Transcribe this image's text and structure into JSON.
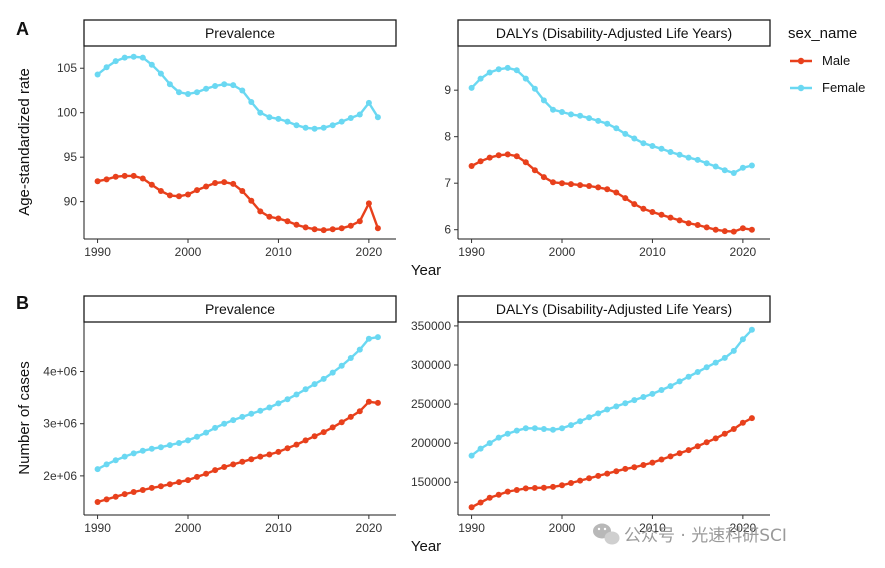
{
  "chart_data": [
    {
      "type": "line",
      "tag": "A",
      "title": "Prevalence",
      "ylabel": "Age-standardized rate",
      "xlim": [
        1988.5,
        2023
      ],
      "ylim": [
        85.8,
        107.5
      ],
      "xticks": [
        1990,
        2000,
        2010,
        2020
      ],
      "xtick_labels": [
        "1990",
        "2000",
        "2010",
        "2020"
      ],
      "yticks": [
        90,
        95,
        100,
        105
      ],
      "ytick_labels": [
        "90",
        "95",
        "100",
        "105"
      ],
      "x": [
        1990,
        1991,
        1992,
        1993,
        1994,
        1995,
        1996,
        1997,
        1998,
        1999,
        2000,
        2001,
        2002,
        2003,
        2004,
        2005,
        2006,
        2007,
        2008,
        2009,
        2010,
        2011,
        2012,
        2013,
        2014,
        2015,
        2016,
        2017,
        2018,
        2019,
        2020,
        2021
      ],
      "series": [
        {
          "name": "Male",
          "color": "#E8401C",
          "values": [
            92.3,
            92.5,
            92.8,
            92.9,
            92.9,
            92.6,
            91.9,
            91.2,
            90.7,
            90.6,
            90.8,
            91.3,
            91.7,
            92.1,
            92.2,
            92.0,
            91.2,
            90.1,
            88.9,
            88.3,
            88.1,
            87.8,
            87.4,
            87.1,
            86.9,
            86.8,
            86.9,
            87.0,
            87.3,
            87.8,
            89.8,
            87.0
          ]
        },
        {
          "name": "Female",
          "color": "#6AD8F2",
          "values": [
            104.3,
            105.1,
            105.8,
            106.2,
            106.3,
            106.2,
            105.4,
            104.4,
            103.2,
            102.3,
            102.1,
            102.3,
            102.7,
            103.0,
            103.2,
            103.1,
            102.5,
            101.2,
            100.0,
            99.5,
            99.3,
            99.0,
            98.6,
            98.3,
            98.2,
            98.3,
            98.6,
            99.0,
            99.4,
            99.8,
            101.1,
            99.5
          ]
        }
      ]
    },
    {
      "type": "line",
      "tag": "",
      "title": "DALYs (Disability-Adjusted Life Years)",
      "ylabel": "",
      "xlim": [
        1988.5,
        2023
      ],
      "ylim": [
        5.8,
        9.95
      ],
      "xticks": [
        1990,
        2000,
        2010,
        2020
      ],
      "xtick_labels": [
        "1990",
        "2000",
        "2010",
        "2020"
      ],
      "yticks": [
        6,
        7,
        8,
        9
      ],
      "ytick_labels": [
        "6",
        "7",
        "8",
        "9"
      ],
      "x": [
        1990,
        1991,
        1992,
        1993,
        1994,
        1995,
        1996,
        1997,
        1998,
        1999,
        2000,
        2001,
        2002,
        2003,
        2004,
        2005,
        2006,
        2007,
        2008,
        2009,
        2010,
        2011,
        2012,
        2013,
        2014,
        2015,
        2016,
        2017,
        2018,
        2019,
        2020,
        2021
      ],
      "series": [
        {
          "name": "Male",
          "color": "#E8401C",
          "values": [
            7.37,
            7.47,
            7.55,
            7.6,
            7.62,
            7.58,
            7.45,
            7.28,
            7.13,
            7.02,
            7.0,
            6.98,
            6.96,
            6.94,
            6.91,
            6.87,
            6.8,
            6.68,
            6.55,
            6.45,
            6.38,
            6.32,
            6.26,
            6.2,
            6.14,
            6.1,
            6.05,
            6.0,
            5.97,
            5.96,
            6.03,
            6.0
          ]
        },
        {
          "name": "Female",
          "color": "#6AD8F2",
          "values": [
            9.05,
            9.25,
            9.38,
            9.45,
            9.48,
            9.43,
            9.25,
            9.03,
            8.78,
            8.58,
            8.53,
            8.48,
            8.45,
            8.4,
            8.34,
            8.28,
            8.18,
            8.06,
            7.96,
            7.86,
            7.8,
            7.74,
            7.67,
            7.61,
            7.55,
            7.5,
            7.43,
            7.36,
            7.28,
            7.22,
            7.33,
            7.38
          ]
        }
      ]
    },
    {
      "type": "line",
      "tag": "B",
      "title": "Prevalence",
      "ylabel": "Number of cases",
      "xlim": [
        1988.5,
        2023
      ],
      "ylim": [
        1250000,
        4950000
      ],
      "xticks": [
        1990,
        2000,
        2010,
        2020
      ],
      "xtick_labels": [
        "1990",
        "2000",
        "2010",
        "2020"
      ],
      "yticks": [
        2000000,
        3000000,
        4000000
      ],
      "ytick_labels": [
        "2e+06",
        "3e+06",
        "4e+06"
      ],
      "x": [
        1990,
        1991,
        1992,
        1993,
        1994,
        1995,
        1996,
        1997,
        1998,
        1999,
        2000,
        2001,
        2002,
        2003,
        2004,
        2005,
        2006,
        2007,
        2008,
        2009,
        2010,
        2011,
        2012,
        2013,
        2014,
        2015,
        2016,
        2017,
        2018,
        2019,
        2020,
        2021
      ],
      "series": [
        {
          "name": "Male",
          "color": "#E8401C",
          "values": [
            1500000,
            1550000,
            1600000,
            1650000,
            1690000,
            1730000,
            1770000,
            1800000,
            1840000,
            1880000,
            1920000,
            1980000,
            2040000,
            2110000,
            2170000,
            2220000,
            2270000,
            2320000,
            2370000,
            2410000,
            2460000,
            2530000,
            2600000,
            2680000,
            2760000,
            2840000,
            2930000,
            3030000,
            3130000,
            3240000,
            3420000,
            3400000
          ]
        },
        {
          "name": "Female",
          "color": "#6AD8F2",
          "values": [
            2130000,
            2220000,
            2300000,
            2370000,
            2430000,
            2480000,
            2520000,
            2550000,
            2590000,
            2630000,
            2680000,
            2750000,
            2830000,
            2920000,
            3000000,
            3070000,
            3130000,
            3190000,
            3250000,
            3310000,
            3390000,
            3470000,
            3560000,
            3660000,
            3760000,
            3860000,
            3980000,
            4110000,
            4260000,
            4420000,
            4630000,
            4660000
          ]
        }
      ]
    },
    {
      "type": "line",
      "tag": "",
      "title": "DALYs (Disability-Adjusted Life Years)",
      "ylabel": "",
      "xlim": [
        1988.5,
        2023
      ],
      "ylim": [
        108000,
        355000
      ],
      "xticks": [
        1990,
        2000,
        2010,
        2020
      ],
      "xtick_labels": [
        "1990",
        "2000",
        "2010",
        "2020"
      ],
      "yticks": [
        150000,
        200000,
        250000,
        300000,
        350000
      ],
      "ytick_labels": [
        "150000",
        "200000",
        "250000",
        "300000",
        "350000"
      ],
      "x": [
        1990,
        1991,
        1992,
        1993,
        1994,
        1995,
        1996,
        1997,
        1998,
        1999,
        2000,
        2001,
        2002,
        2003,
        2004,
        2005,
        2006,
        2007,
        2008,
        2009,
        2010,
        2011,
        2012,
        2013,
        2014,
        2015,
        2016,
        2017,
        2018,
        2019,
        2020,
        2021
      ],
      "series": [
        {
          "name": "Male",
          "color": "#E8401C",
          "values": [
            118000,
            124000,
            130000,
            134000,
            138000,
            140000,
            142000,
            142500,
            143000,
            144000,
            146000,
            149000,
            152000,
            155000,
            158000,
            161000,
            164000,
            167000,
            169000,
            172000,
            175000,
            179000,
            183000,
            187000,
            191000,
            196000,
            201000,
            206000,
            212000,
            218000,
            226000,
            232000
          ]
        },
        {
          "name": "Female",
          "color": "#6AD8F2",
          "values": [
            184000,
            193000,
            200000,
            207000,
            212000,
            216000,
            219000,
            219000,
            218000,
            217000,
            219000,
            223000,
            228000,
            233000,
            238000,
            243000,
            247000,
            251000,
            255000,
            259000,
            263000,
            268000,
            273000,
            279000,
            285000,
            291000,
            297000,
            303000,
            309000,
            318000,
            333000,
            345000
          ]
        }
      ]
    }
  ],
  "shared_xlabel": "Year",
  "legend": {
    "title": "sex_name",
    "items": [
      {
        "label": "Male",
        "color": "#E8401C"
      },
      {
        "label": "Female",
        "color": "#6AD8F2"
      }
    ]
  },
  "watermark": "公众号 · 光速科研SCI"
}
